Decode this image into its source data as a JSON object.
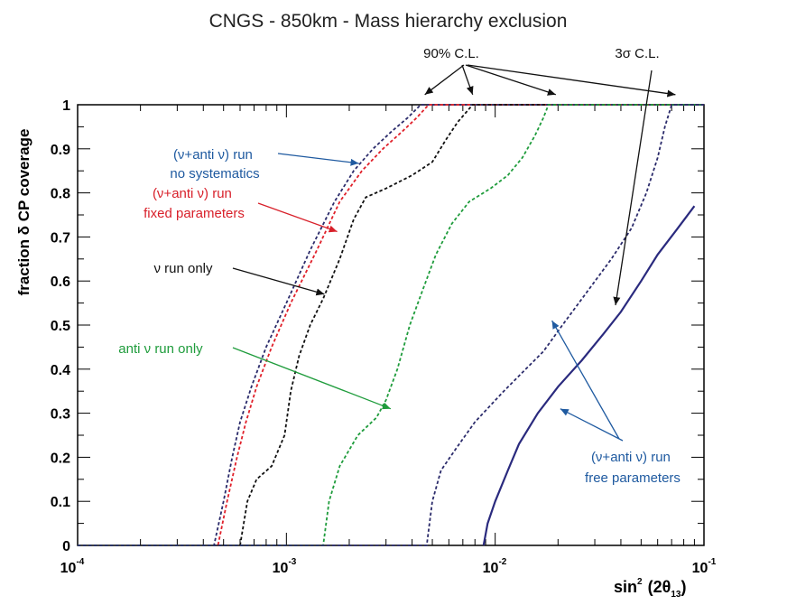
{
  "chart_data": {
    "type": "line",
    "title": "CNGS - 850km - Mass hierarchy exclusion",
    "xlabel": {
      "prefix": "sin",
      "power": "2",
      "arg_open": "(2θ",
      "arg_sub": "13",
      "arg_close": ")"
    },
    "ylabel": "fraction δ CP coverage",
    "xscale": "log",
    "xlim": [
      0.0001,
      0.1
    ],
    "ylim": [
      0,
      1
    ],
    "x_ticks": [
      {
        "base": "10",
        "exp": "-4",
        "value": 0.0001
      },
      {
        "base": "10",
        "exp": "-3",
        "value": 0.001
      },
      {
        "base": "10",
        "exp": "-2",
        "value": 0.01
      },
      {
        "base": "10",
        "exp": "-1",
        "value": 0.1
      }
    ],
    "y_ticks": [
      "0",
      "0.1",
      "0.2",
      "0.3",
      "0.4",
      "0.5",
      "0.6",
      "0.7",
      "0.8",
      "0.9",
      "1"
    ],
    "series": [
      {
        "name": "(ν+anti ν) run no systematics",
        "color": "#2b2b6b",
        "style": "dashed",
        "points": [
          [
            0.0001,
            0
          ],
          [
            0.00045,
            0
          ],
          [
            0.0005,
            0.1
          ],
          [
            0.00055,
            0.2
          ],
          [
            0.0006,
            0.28
          ],
          [
            0.00068,
            0.36
          ],
          [
            0.0008,
            0.45
          ],
          [
            0.001,
            0.55
          ],
          [
            0.0013,
            0.67
          ],
          [
            0.0017,
            0.78
          ],
          [
            0.0021,
            0.85
          ],
          [
            0.0026,
            0.9
          ],
          [
            0.0032,
            0.94
          ],
          [
            0.0038,
            0.97
          ],
          [
            0.0044,
            1
          ],
          [
            0.1,
            1
          ]
        ]
      },
      {
        "name": "(ν+anti ν) run fixed parameters",
        "color": "#e0202a",
        "style": "dashed",
        "points": [
          [
            0.0001,
            0
          ],
          [
            0.00047,
            0
          ],
          [
            0.00052,
            0.1
          ],
          [
            0.00058,
            0.2
          ],
          [
            0.00064,
            0.28
          ],
          [
            0.00072,
            0.36
          ],
          [
            0.00085,
            0.45
          ],
          [
            0.00105,
            0.55
          ],
          [
            0.0014,
            0.67
          ],
          [
            0.0018,
            0.78
          ],
          [
            0.0023,
            0.85
          ],
          [
            0.0029,
            0.9
          ],
          [
            0.0036,
            0.94
          ],
          [
            0.0042,
            0.97
          ],
          [
            0.0048,
            1
          ],
          [
            0.1,
            1
          ]
        ]
      },
      {
        "name": "ν run only",
        "color": "#111111",
        "style": "dashed",
        "points": [
          [
            0.0001,
            0
          ],
          [
            0.0006,
            0
          ],
          [
            0.00065,
            0.1
          ],
          [
            0.00072,
            0.15
          ],
          [
            0.00085,
            0.18
          ],
          [
            0.00098,
            0.25
          ],
          [
            0.00105,
            0.35
          ],
          [
            0.00115,
            0.43
          ],
          [
            0.0013,
            0.5
          ],
          [
            0.0015,
            0.56
          ],
          [
            0.0018,
            0.65
          ],
          [
            0.0021,
            0.74
          ],
          [
            0.0024,
            0.79
          ],
          [
            0.003,
            0.81
          ],
          [
            0.004,
            0.84
          ],
          [
            0.005,
            0.87
          ],
          [
            0.0058,
            0.92
          ],
          [
            0.0066,
            0.96
          ],
          [
            0.0078,
            1
          ],
          [
            0.1,
            1
          ]
        ]
      },
      {
        "name": "anti ν run only",
        "color": "#1f9c3c",
        "style": "dashed",
        "points": [
          [
            0.0001,
            0
          ],
          [
            0.0015,
            0
          ],
          [
            0.0016,
            0.1
          ],
          [
            0.0018,
            0.18
          ],
          [
            0.0022,
            0.25
          ],
          [
            0.0027,
            0.29
          ],
          [
            0.003,
            0.33
          ],
          [
            0.0034,
            0.4
          ],
          [
            0.0039,
            0.5
          ],
          [
            0.0045,
            0.58
          ],
          [
            0.0052,
            0.66
          ],
          [
            0.0062,
            0.73
          ],
          [
            0.0075,
            0.78
          ],
          [
            0.0095,
            0.81
          ],
          [
            0.0115,
            0.84
          ],
          [
            0.0135,
            0.88
          ],
          [
            0.0155,
            0.93
          ],
          [
            0.017,
            0.97
          ],
          [
            0.018,
            1
          ],
          [
            0.1,
            1
          ]
        ]
      },
      {
        "name": "(ν+anti ν) run free parameters — 90% C.L.",
        "color": "#2b2b6b",
        "style": "dashed",
        "points": [
          [
            0.0001,
            0
          ],
          [
            0.0047,
            0
          ],
          [
            0.005,
            0.1
          ],
          [
            0.0055,
            0.17
          ],
          [
            0.0065,
            0.22
          ],
          [
            0.008,
            0.28
          ],
          [
            0.011,
            0.35
          ],
          [
            0.014,
            0.4
          ],
          [
            0.017,
            0.44
          ],
          [
            0.021,
            0.5
          ],
          [
            0.028,
            0.58
          ],
          [
            0.036,
            0.65
          ],
          [
            0.045,
            0.72
          ],
          [
            0.053,
            0.8
          ],
          [
            0.06,
            0.88
          ],
          [
            0.065,
            0.95
          ],
          [
            0.07,
            1
          ],
          [
            0.1,
            1
          ]
        ]
      },
      {
        "name": "(ν+anti ν) run free parameters — 3σ C.L.",
        "color": "#2a2a7e",
        "style": "solid",
        "points": [
          [
            0.0088,
            0
          ],
          [
            0.0092,
            0.05
          ],
          [
            0.01,
            0.1
          ],
          [
            0.0115,
            0.17
          ],
          [
            0.013,
            0.23
          ],
          [
            0.016,
            0.3
          ],
          [
            0.02,
            0.36
          ],
          [
            0.026,
            0.42
          ],
          [
            0.033,
            0.48
          ],
          [
            0.04,
            0.53
          ],
          [
            0.05,
            0.6
          ],
          [
            0.06,
            0.66
          ],
          [
            0.075,
            0.72
          ],
          [
            0.09,
            0.77
          ]
        ]
      }
    ],
    "annotations": [
      {
        "id": "no-syst",
        "lines": [
          "(ν+anti ν) run",
          "no systematics"
        ],
        "color": "#1f5aa0",
        "arrows": [
          [
            [
              0.00222,
              0.867
            ]
          ]
        ]
      },
      {
        "id": "fixed",
        "lines": [
          "(ν+anti ν) run",
          "fixed parameters"
        ],
        "color": "#d8202a",
        "arrows": [
          [
            [
              0.00175,
              0.712
            ]
          ]
        ]
      },
      {
        "id": "nu-only",
        "lines": [
          "ν run only"
        ],
        "color": "#111111",
        "arrows": [
          [
            [
              0.00152,
              0.57
            ]
          ]
        ]
      },
      {
        "id": "anti-only",
        "lines": [
          "anti ν run only"
        ],
        "color": "#1f9c3c",
        "arrows": [
          [
            [
              0.00316,
              0.31
            ]
          ]
        ]
      },
      {
        "id": "free",
        "lines": [
          "(ν+anti ν) run",
          "free parameters"
        ],
        "color": "#1f5aa0",
        "arrows": [
          [
            [
              0.0187,
              0.51
            ]
          ],
          [
            [
              0.0205,
              0.31
            ]
          ]
        ]
      },
      {
        "id": "cl90",
        "lines": [
          "90% C.L."
        ],
        "color": "#111111",
        "arrows": [
          [
            [
              0.0046,
              1.023
            ]
          ],
          [
            [
              0.0078,
              1.023
            ]
          ],
          [
            [
              0.0195,
              1.023
            ]
          ],
          [
            [
              0.073,
              1.023
            ]
          ]
        ]
      },
      {
        "id": "cl3s",
        "lines": [
          "3σ C.L."
        ],
        "color": "#111111",
        "arrows": [
          [
            [
              0.0377,
              0.545
            ]
          ]
        ]
      }
    ]
  }
}
